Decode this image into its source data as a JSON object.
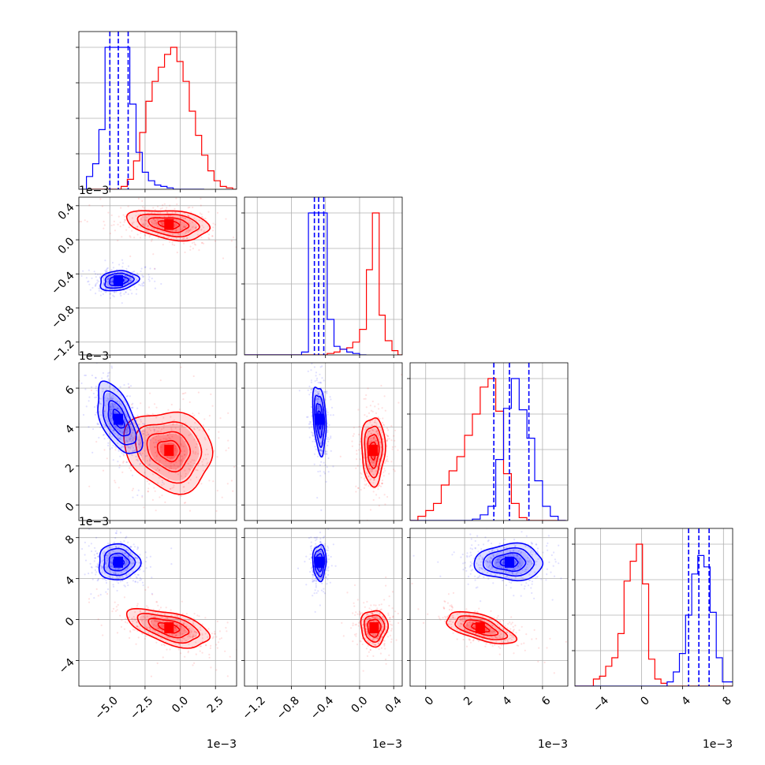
{
  "chart_data": {
    "type": "corner",
    "params": [
      {
        "ticks": [
          -5.0,
          -2.5,
          0.0,
          2.5
        ],
        "tick_labels": [
          "−5.0",
          "−2.5",
          "0.0",
          "2.5"
        ],
        "range": [
          -7.2,
          4.0
        ],
        "offset": "1e−3"
      },
      {
        "ticks": [
          -1.2,
          -0.8,
          -0.4,
          0.0,
          0.4
        ],
        "tick_labels": [
          "−1.2",
          "−0.8",
          "−0.4",
          "0.0",
          "0.4"
        ],
        "range": [
          -1.35,
          0.5
        ],
        "offset": "1e−3"
      },
      {
        "ticks": [
          0,
          2,
          4,
          6
        ],
        "tick_labels": [
          "0",
          "2",
          "4",
          "6"
        ],
        "range": [
          -0.8,
          7.3
        ],
        "offset": "1e−3"
      },
      {
        "ticks": [
          -4,
          0,
          4,
          8
        ],
        "tick_labels": [
          "−4",
          "0",
          "4",
          "8"
        ],
        "range": [
          -6.5,
          8.9
        ],
        "offset": "1e−3"
      }
    ],
    "series": [
      {
        "color": "#ff0000",
        "mean": [
          -0.8,
          0.18,
          2.8,
          -0.8
        ],
        "std": [
          1.3,
          0.13,
          1.0,
          1.1
        ],
        "quantiles": null,
        "hist": [
          {
            "bins": [
              -6.4,
              -5.96,
              -5.52,
              -5.08,
              -4.64,
              -4.2,
              -3.76,
              -3.32,
              -2.88,
              -2.44,
              -2.0,
              -1.56,
              -1.12,
              -0.68,
              -0.24,
              0.2,
              0.64,
              1.08,
              1.52,
              1.96,
              2.4,
              2.84,
              3.28,
              3.72,
              4.16
            ],
            "counts": [
              0.0,
              0.0,
              0.0,
              0.0,
              0.0,
              0.02,
              0.07,
              0.2,
              0.4,
              0.62,
              0.76,
              0.86,
              0.95,
              1.0,
              0.9,
              0.76,
              0.55,
              0.38,
              0.24,
              0.13,
              0.06,
              0.02,
              0.01,
              0.0
            ]
          },
          {
            "bins": [
              -1.35,
              -1.28,
              -1.2,
              -1.13,
              -1.05,
              -0.98,
              -0.9,
              -0.83,
              -0.75,
              -0.68,
              -0.6,
              -0.53,
              -0.45,
              -0.38,
              -0.3,
              -0.23,
              -0.15,
              -0.08,
              0.0,
              0.08,
              0.15,
              0.23,
              0.3,
              0.38,
              0.45,
              0.5
            ],
            "counts": [
              0.0,
              0.0,
              0.0,
              0.0,
              0.0,
              0.0,
              0.0,
              0.0,
              0.0,
              0.0,
              0.0,
              0.0,
              0.0,
              0.01,
              0.02,
              0.04,
              0.05,
              0.09,
              0.18,
              0.6,
              1.0,
              0.28,
              0.1,
              0.03,
              0.0
            ]
          },
          {
            "bins": [
              -0.8,
              -0.4,
              0.0,
              0.4,
              0.8,
              1.2,
              1.6,
              2.0,
              2.4,
              2.8,
              3.2,
              3.6,
              4.0,
              4.4,
              4.8,
              5.2,
              5.6,
              6.0,
              6.4,
              6.8,
              7.2
            ],
            "counts": [
              0.0,
              0.03,
              0.07,
              0.12,
              0.25,
              0.35,
              0.45,
              0.6,
              0.75,
              0.94,
              1.0,
              0.77,
              0.33,
              0.12,
              0.02,
              0.0,
              0.0,
              0.0,
              0.0,
              0.0
            ]
          },
          {
            "bins": [
              -6.5,
              -5.9,
              -5.3,
              -4.7,
              -4.1,
              -3.5,
              -2.9,
              -2.3,
              -1.7,
              -1.1,
              -0.5,
              0.1,
              0.7,
              1.3,
              1.9,
              2.5,
              3.1,
              3.7,
              4.3,
              4.9,
              5.5,
              6.1,
              6.7,
              7.3,
              7.9,
              8.5,
              8.9
            ],
            "counts": [
              0.0,
              0.0,
              0.0,
              0.05,
              0.07,
              0.14,
              0.2,
              0.37,
              0.74,
              0.88,
              1.0,
              0.72,
              0.19,
              0.05,
              0.02,
              0.0,
              0.0,
              0.0,
              0.0,
              0.0,
              0.0,
              0.0,
              0.0,
              0.0,
              0.0,
              0.0
            ]
          }
        ],
        "pairs": [
          {
            "row": 1,
            "col": 0,
            "center": [
              -0.8,
              0.18
            ],
            "sx": 1.5,
            "sy": 0.09,
            "rho": -0.3
          },
          {
            "row": 2,
            "col": 0,
            "center": [
              -0.8,
              2.8
            ],
            "sx": 1.6,
            "sy": 1.05,
            "rho": -0.15
          },
          {
            "row": 2,
            "col": 1,
            "center": [
              0.16,
              2.8
            ],
            "sx": 0.07,
            "sy": 0.9,
            "rho": 0.0
          },
          {
            "row": 3,
            "col": 0,
            "center": [
              -0.8,
              -0.8
            ],
            "sx": 1.5,
            "sy": 0.95,
            "rho": -0.55
          },
          {
            "row": 3,
            "col": 1,
            "center": [
              0.17,
              -0.8
            ],
            "sx": 0.08,
            "sy": 0.9,
            "rho": 0.0
          },
          {
            "row": 3,
            "col": 2,
            "center": [
              2.8,
              -0.8
            ],
            "sx": 0.9,
            "sy": 0.8,
            "rho": -0.6
          }
        ]
      },
      {
        "color": "#0000ff",
        "mean": [
          -4.4,
          -0.48,
          4.3,
          5.6
        ],
        "std": [
          0.75,
          0.06,
          0.85,
          0.95
        ],
        "quantiles": [
          [
            -5.0,
            -4.4,
            -3.7
          ],
          [
            -0.53,
            -0.48,
            -0.42
          ],
          [
            3.5,
            4.3,
            5.3
          ],
          [
            4.6,
            5.6,
            6.6
          ]
        ],
        "hist": [
          {
            "bins": [
              -7.1,
              -6.66,
              -6.22,
              -5.78,
              -5.34,
              -4.9,
              -4.46,
              -4.02,
              -3.58,
              -3.14,
              -2.7,
              -2.26,
              -1.82,
              -1.38,
              -0.94,
              -0.5,
              -0.06,
              0.38,
              0.82,
              1.26,
              1.7
            ],
            "counts": [
              0.0,
              0.09,
              0.18,
              0.42,
              1.0,
              1.0,
              1.0,
              1.0,
              0.6,
              0.26,
              0.12,
              0.06,
              0.03,
              0.02,
              0.01,
              0.0,
              0.0,
              0.0,
              0.0,
              0.0
            ]
          },
          {
            "bins": [
              -1.35,
              -1.28,
              -1.2,
              -1.13,
              -1.05,
              -0.98,
              -0.9,
              -0.83,
              -0.75,
              -0.68,
              -0.6,
              -0.53,
              -0.45,
              -0.38,
              -0.3,
              -0.23,
              -0.15,
              -0.08,
              0.0,
              0.08
            ],
            "counts": [
              0.0,
              0.0,
              0.0,
              0.0,
              0.0,
              0.0,
              0.0,
              0.0,
              0.0,
              0.02,
              1.0,
              1.0,
              1.0,
              0.25,
              0.06,
              0.04,
              0.02,
              0.01,
              0.0
            ]
          },
          {
            "bins": [
              -0.8,
              -0.4,
              0.0,
              0.4,
              0.8,
              1.2,
              1.6,
              2.0,
              2.4,
              2.8,
              3.2,
              3.6,
              4.0,
              4.4,
              4.8,
              5.2,
              5.6,
              6.0,
              6.4,
              6.8,
              7.2
            ],
            "counts": [
              0.0,
              0.0,
              0.0,
              0.0,
              0.0,
              0.0,
              0.0,
              0.0,
              0.01,
              0.04,
              0.1,
              0.43,
              0.79,
              1.0,
              0.78,
              0.58,
              0.28,
              0.1,
              0.03,
              0.0
            ]
          },
          {
            "bins": [
              -6.5,
              -5.9,
              -5.3,
              -4.7,
              -4.1,
              -3.5,
              -2.9,
              -2.3,
              -1.7,
              -1.1,
              -0.5,
              0.1,
              0.7,
              1.3,
              1.9,
              2.5,
              3.1,
              3.7,
              4.3,
              4.9,
              5.5,
              6.1,
              6.7,
              7.3,
              7.9,
              8.5,
              8.9
            ],
            "counts": [
              0.0,
              0.0,
              0.0,
              0.0,
              0.0,
              0.0,
              0.0,
              0.0,
              0.0,
              0.0,
              0.0,
              0.0,
              0.0,
              0.0,
              0.0,
              0.03,
              0.1,
              0.23,
              0.5,
              0.79,
              0.92,
              0.84,
              0.52,
              0.2,
              0.03,
              0.03
            ]
          }
        ],
        "pairs": [
          {
            "row": 1,
            "col": 0,
            "center": [
              -4.4,
              -0.48
            ],
            "sx": 0.7,
            "sy": 0.06,
            "rho": 0.2
          },
          {
            "row": 2,
            "col": 0,
            "center": [
              -4.4,
              4.4
            ],
            "sx": 0.8,
            "sy": 0.95,
            "rho": -0.6
          },
          {
            "row": 2,
            "col": 1,
            "center": [
              -0.47,
              4.4
            ],
            "sx": 0.04,
            "sy": 0.9,
            "rho": -0.3
          },
          {
            "row": 3,
            "col": 0,
            "center": [
              -4.4,
              5.6
            ],
            "sx": 0.75,
            "sy": 0.9,
            "rho": 0.0
          },
          {
            "row": 3,
            "col": 1,
            "center": [
              -0.47,
              5.6
            ],
            "sx": 0.04,
            "sy": 0.9,
            "rho": 0.0
          },
          {
            "row": 3,
            "col": 2,
            "center": [
              4.3,
              5.6
            ],
            "sx": 0.9,
            "sy": 0.9,
            "rho": 0.0
          }
        ]
      }
    ],
    "grid": true,
    "legend": null
  }
}
